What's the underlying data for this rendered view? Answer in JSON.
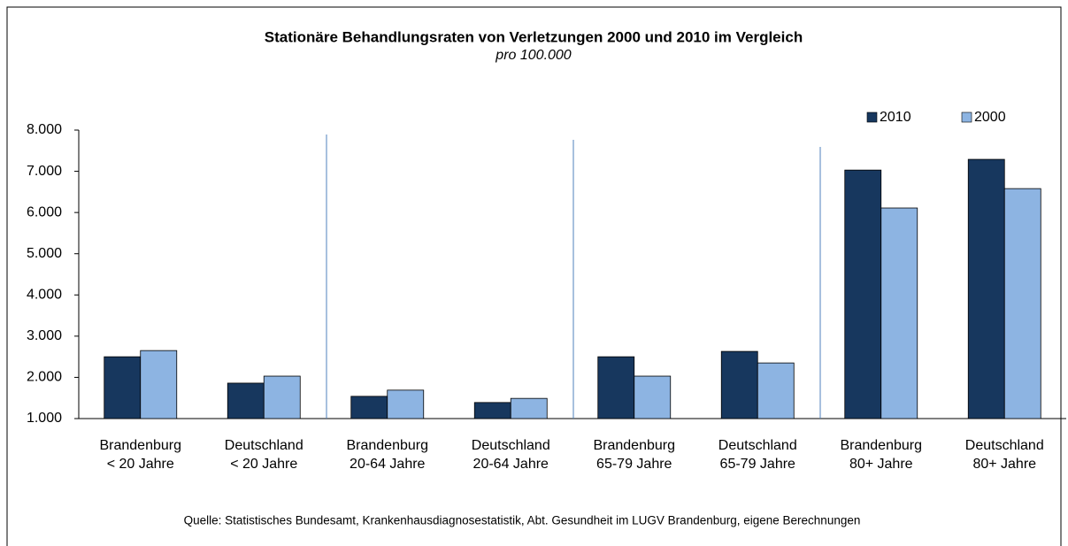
{
  "chart_data": {
    "type": "bar",
    "title": "Stationäre Behandlungsraten  von Verletzungen 2000 und 2010 im Vergleich",
    "subtitle": "pro 100.000",
    "categories": [
      [
        "Brandenburg",
        "< 20 Jahre"
      ],
      [
        "Deutschland",
        "< 20 Jahre"
      ],
      [
        "Brandenburg",
        "20-64 Jahre"
      ],
      [
        "Deutschland",
        "20-64 Jahre"
      ],
      [
        "Brandenburg",
        "65-79 Jahre"
      ],
      [
        "Deutschland",
        "65-79 Jahre"
      ],
      [
        "Brandenburg",
        "80+ Jahre"
      ],
      [
        "Deutschland",
        "80+ Jahre"
      ]
    ],
    "series": [
      {
        "name": "2010",
        "color": "#17375e",
        "values": [
          2500,
          1860,
          1540,
          1390,
          2500,
          2630,
          7030,
          7290
        ]
      },
      {
        "name": "2000",
        "color": "#8db4e2",
        "values": [
          2650,
          2030,
          1690,
          1490,
          2030,
          2350,
          6110,
          6580
        ]
      }
    ],
    "ylim": [
      1000,
      8000
    ],
    "yticks": [
      {
        "value": 1000,
        "label": "1.000"
      },
      {
        "value": 2000,
        "label": "2.000"
      },
      {
        "value": 3000,
        "label": "3.000"
      },
      {
        "value": 4000,
        "label": "4.000"
      },
      {
        "value": 5000,
        "label": "5.000"
      },
      {
        "value": 6000,
        "label": "6.000"
      },
      {
        "value": 7000,
        "label": "7.000"
      },
      {
        "value": 8000,
        "label": "8.000"
      }
    ],
    "grid": false,
    "legend": "top-right",
    "source": "Quelle: Statistisches  Bundesamt, Krankenhausdiagnosestatistik, Abt. Gesundheit im LUGV Brandenburg, eigene Berechnungen"
  }
}
